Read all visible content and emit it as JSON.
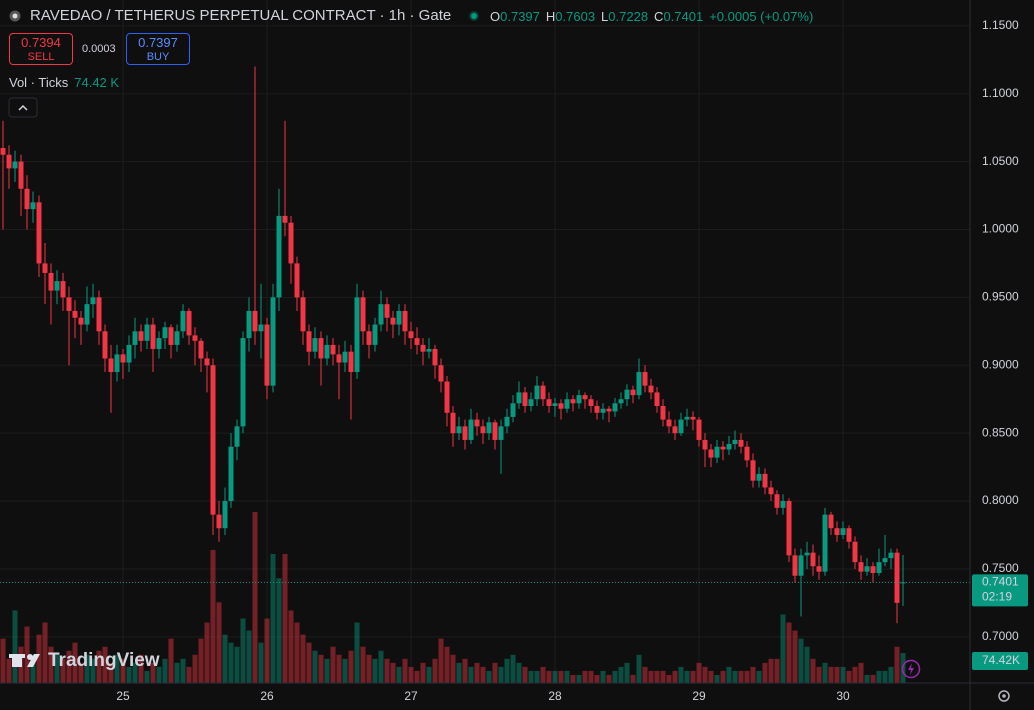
{
  "chart_data": {
    "type": "candlestick",
    "title": "RAVEDAO / TETHERUS PERPETUAL CONTRACT · 1h · Gate",
    "header": {
      "o_label": "O",
      "o": "0.7397",
      "h_label": "H",
      "h": "0.7603",
      "l_label": "L",
      "l": "0.7228",
      "c_label": "C",
      "c": "0.7401",
      "change": "+0.0005 (+0.07%)"
    },
    "trade": {
      "sell_price": "0.7394",
      "sell": "SELL",
      "spread": "0.0003",
      "buy_price": "0.7397",
      "buy": "BUY"
    },
    "volume_legend": {
      "name": "Vol · Ticks",
      "value": "74.42 K"
    },
    "price_scale": {
      "last_price": "0.7401",
      "countdown": "02:19",
      "last_volume": "74.42K"
    },
    "brand": "TradingView",
    "up_color": "#089981",
    "down_color": "#f23645",
    "grid": true,
    "ylim": [
      0.666,
      1.169
    ],
    "yticks": [
      {
        "value": 0.7,
        "label": "0.7000"
      },
      {
        "value": 0.75,
        "label": "0.7500"
      },
      {
        "value": 0.8,
        "label": "0.8000"
      },
      {
        "value": 0.85,
        "label": "0.8500"
      },
      {
        "value": 0.9,
        "label": "0.9000"
      },
      {
        "value": 0.95,
        "label": "0.9500"
      },
      {
        "value": 1.0,
        "label": "1.0000"
      },
      {
        "value": 1.05,
        "label": "1.0500"
      },
      {
        "value": 1.1,
        "label": "1.1000"
      },
      {
        "value": 1.15,
        "label": "1.1500"
      }
    ],
    "volume_ylim": [
      0,
      1694
    ],
    "categories": [
      null,
      null,
      null,
      null,
      null,
      null,
      null,
      null,
      null,
      null,
      null,
      null,
      null,
      null,
      null,
      null,
      null,
      null,
      null,
      null,
      "25",
      null,
      null,
      null,
      null,
      null,
      null,
      null,
      null,
      null,
      null,
      null,
      null,
      null,
      null,
      null,
      null,
      null,
      null,
      null,
      null,
      null,
      null,
      null,
      "26",
      null,
      null,
      null,
      null,
      null,
      null,
      null,
      null,
      null,
      null,
      null,
      null,
      null,
      null,
      null,
      null,
      null,
      null,
      null,
      null,
      null,
      null,
      null,
      "27",
      null,
      null,
      null,
      null,
      null,
      null,
      null,
      null,
      null,
      null,
      null,
      null,
      null,
      null,
      null,
      null,
      null,
      null,
      null,
      null,
      null,
      null,
      null,
      "28",
      null,
      null,
      null,
      null,
      null,
      null,
      null,
      null,
      null,
      null,
      null,
      null,
      null,
      null,
      null,
      null,
      null,
      null,
      null,
      null,
      null,
      null,
      null,
      "29",
      null,
      null,
      null,
      null,
      null,
      null,
      null,
      null,
      null,
      null,
      null,
      null,
      null,
      null,
      null,
      null,
      null,
      null,
      null,
      null,
      null,
      null,
      null,
      "30",
      null,
      null,
      null,
      null,
      null,
      null,
      null,
      null,
      null,
      null
    ],
    "candles": [
      [
        1.06,
        1.08,
        1.0,
        1.055
      ],
      [
        1.055,
        1.062,
        1.03,
        1.045
      ],
      [
        1.045,
        1.058,
        1.035,
        1.05
      ],
      [
        1.05,
        1.055,
        1.01,
        1.03
      ],
      [
        1.03,
        1.04,
        1.0,
        1.015
      ],
      [
        1.015,
        1.028,
        1.005,
        1.02
      ],
      [
        1.02,
        1.025,
        0.965,
        0.975
      ],
      [
        0.975,
        0.99,
        0.945,
        0.968
      ],
      [
        0.968,
        0.975,
        0.93,
        0.955
      ],
      [
        0.955,
        0.97,
        0.945,
        0.962
      ],
      [
        0.962,
        0.968,
        0.94,
        0.95
      ],
      [
        0.95,
        0.958,
        0.9,
        0.94
      ],
      [
        0.94,
        0.948,
        0.92,
        0.935
      ],
      [
        0.935,
        0.94,
        0.915,
        0.93
      ],
      [
        0.93,
        0.958,
        0.925,
        0.945
      ],
      [
        0.945,
        0.96,
        0.935,
        0.95
      ],
      [
        0.95,
        0.955,
        0.915,
        0.925
      ],
      [
        0.925,
        0.93,
        0.895,
        0.905
      ],
      [
        0.905,
        0.915,
        0.865,
        0.895
      ],
      [
        0.895,
        0.915,
        0.888,
        0.908
      ],
      [
        0.908,
        0.912,
        0.89,
        0.902
      ],
      [
        0.902,
        0.922,
        0.895,
        0.915
      ],
      [
        0.915,
        0.935,
        0.905,
        0.925
      ],
      [
        0.925,
        0.93,
        0.91,
        0.918
      ],
      [
        0.918,
        0.935,
        0.912,
        0.93
      ],
      [
        0.93,
        0.935,
        0.895,
        0.912
      ],
      [
        0.912,
        0.925,
        0.905,
        0.92
      ],
      [
        0.92,
        0.932,
        0.912,
        0.928
      ],
      [
        0.928,
        0.93,
        0.905,
        0.915
      ],
      [
        0.915,
        0.93,
        0.91,
        0.925
      ],
      [
        0.925,
        0.945,
        0.92,
        0.94
      ],
      [
        0.94,
        0.942,
        0.915,
        0.922
      ],
      [
        0.922,
        0.928,
        0.9,
        0.918
      ],
      [
        0.918,
        0.92,
        0.895,
        0.905
      ],
      [
        0.905,
        0.91,
        0.88,
        0.9
      ],
      [
        0.9,
        0.905,
        0.775,
        0.79
      ],
      [
        0.79,
        0.8,
        0.77,
        0.78
      ],
      [
        0.78,
        0.81,
        0.775,
        0.8
      ],
      [
        0.8,
        0.85,
        0.795,
        0.84
      ],
      [
        0.84,
        0.86,
        0.83,
        0.855
      ],
      [
        0.855,
        0.925,
        0.85,
        0.92
      ],
      [
        0.92,
        0.95,
        0.91,
        0.94
      ],
      [
        0.94,
        1.12,
        0.915,
        0.925
      ],
      [
        0.925,
        0.96,
        0.905,
        0.93
      ],
      [
        0.93,
        0.935,
        0.875,
        0.885
      ],
      [
        0.885,
        0.96,
        0.88,
        0.95
      ],
      [
        0.95,
        1.03,
        0.94,
        1.01
      ],
      [
        1.01,
        1.08,
        0.995,
        1.005
      ],
      [
        1.005,
        1.01,
        0.96,
        0.975
      ],
      [
        0.975,
        0.98,
        0.94,
        0.95
      ],
      [
        0.95,
        0.955,
        0.915,
        0.925
      ],
      [
        0.925,
        0.93,
        0.9,
        0.91
      ],
      [
        0.91,
        0.928,
        0.905,
        0.92
      ],
      [
        0.92,
        0.925,
        0.885,
        0.905
      ],
      [
        0.905,
        0.922,
        0.9,
        0.915
      ],
      [
        0.915,
        0.92,
        0.9,
        0.908
      ],
      [
        0.908,
        0.915,
        0.875,
        0.902
      ],
      [
        0.902,
        0.918,
        0.895,
        0.91
      ],
      [
        0.91,
        0.915,
        0.86,
        0.895
      ],
      [
        0.895,
        0.96,
        0.89,
        0.95
      ],
      [
        0.95,
        0.955,
        0.915,
        0.925
      ],
      [
        0.925,
        0.93,
        0.905,
        0.915
      ],
      [
        0.915,
        0.935,
        0.91,
        0.93
      ],
      [
        0.93,
        0.955,
        0.925,
        0.945
      ],
      [
        0.945,
        0.95,
        0.925,
        0.935
      ],
      [
        0.935,
        0.94,
        0.92,
        0.93
      ],
      [
        0.93,
        0.945,
        0.922,
        0.94
      ],
      [
        0.94,
        0.945,
        0.915,
        0.925
      ],
      [
        0.925,
        0.932,
        0.912,
        0.92
      ],
      [
        0.92,
        0.928,
        0.908,
        0.915
      ],
      [
        0.915,
        0.92,
        0.9,
        0.91
      ],
      [
        0.91,
        0.92,
        0.905,
        0.912
      ],
      [
        0.912,
        0.915,
        0.89,
        0.9
      ],
      [
        0.9,
        0.905,
        0.88,
        0.888
      ],
      [
        0.888,
        0.892,
        0.855,
        0.865
      ],
      [
        0.865,
        0.87,
        0.84,
        0.85
      ],
      [
        0.85,
        0.862,
        0.845,
        0.855
      ],
      [
        0.855,
        0.86,
        0.838,
        0.845
      ],
      [
        0.845,
        0.868,
        0.842,
        0.86
      ],
      [
        0.86,
        0.865,
        0.848,
        0.855
      ],
      [
        0.855,
        0.86,
        0.842,
        0.85
      ],
      [
        0.85,
        0.862,
        0.845,
        0.858
      ],
      [
        0.858,
        0.86,
        0.838,
        0.845
      ],
      [
        0.845,
        0.86,
        0.82,
        0.855
      ],
      [
        0.855,
        0.868,
        0.85,
        0.862
      ],
      [
        0.862,
        0.878,
        0.858,
        0.872
      ],
      [
        0.872,
        0.888,
        0.868,
        0.88
      ],
      [
        0.88,
        0.884,
        0.865,
        0.87
      ],
      [
        0.87,
        0.88,
        0.866,
        0.875
      ],
      [
        0.875,
        0.892,
        0.87,
        0.885
      ],
      [
        0.885,
        0.888,
        0.87,
        0.875
      ],
      [
        0.875,
        0.88,
        0.865,
        0.87
      ],
      [
        0.87,
        0.876,
        0.862,
        0.872
      ],
      [
        0.872,
        0.875,
        0.86,
        0.868
      ],
      [
        0.868,
        0.88,
        0.865,
        0.875
      ],
      [
        0.875,
        0.878,
        0.866,
        0.872
      ],
      [
        0.872,
        0.882,
        0.868,
        0.878
      ],
      [
        0.878,
        0.88,
        0.868,
        0.875
      ],
      [
        0.875,
        0.878,
        0.865,
        0.87
      ],
      [
        0.87,
        0.874,
        0.86,
        0.865
      ],
      [
        0.865,
        0.872,
        0.86,
        0.868
      ],
      [
        0.868,
        0.87,
        0.858,
        0.866
      ],
      [
        0.866,
        0.876,
        0.862,
        0.872
      ],
      [
        0.872,
        0.88,
        0.868,
        0.875
      ],
      [
        0.875,
        0.886,
        0.87,
        0.882
      ],
      [
        0.882,
        0.885,
        0.872,
        0.878
      ],
      [
        0.878,
        0.905,
        0.875,
        0.895
      ],
      [
        0.895,
        0.9,
        0.88,
        0.885
      ],
      [
        0.885,
        0.89,
        0.875,
        0.88
      ],
      [
        0.88,
        0.884,
        0.865,
        0.87
      ],
      [
        0.87,
        0.875,
        0.855,
        0.86
      ],
      [
        0.86,
        0.866,
        0.85,
        0.855
      ],
      [
        0.855,
        0.86,
        0.845,
        0.85
      ],
      [
        0.85,
        0.865,
        0.848,
        0.86
      ],
      [
        0.86,
        0.868,
        0.855,
        0.862
      ],
      [
        0.862,
        0.866,
        0.852,
        0.86
      ],
      [
        0.86,
        0.862,
        0.84,
        0.845
      ],
      [
        0.845,
        0.85,
        0.825,
        0.838
      ],
      [
        0.838,
        0.842,
        0.825,
        0.832
      ],
      [
        0.832,
        0.845,
        0.828,
        0.84
      ],
      [
        0.84,
        0.844,
        0.83,
        0.838
      ],
      [
        0.838,
        0.848,
        0.834,
        0.842
      ],
      [
        0.842,
        0.852,
        0.838,
        0.845
      ],
      [
        0.845,
        0.85,
        0.835,
        0.84
      ],
      [
        0.84,
        0.844,
        0.825,
        0.83
      ],
      [
        0.83,
        0.835,
        0.81,
        0.815
      ],
      [
        0.815,
        0.825,
        0.81,
        0.82
      ],
      [
        0.82,
        0.824,
        0.805,
        0.81
      ],
      [
        0.81,
        0.815,
        0.8,
        0.805
      ],
      [
        0.805,
        0.808,
        0.79,
        0.795
      ],
      [
        0.795,
        0.805,
        0.79,
        0.8
      ],
      [
        0.8,
        0.802,
        0.755,
        0.76
      ],
      [
        0.76,
        0.765,
        0.74,
        0.745
      ],
      [
        0.745,
        0.765,
        0.715,
        0.76
      ],
      [
        0.76,
        0.77,
        0.75,
        0.762
      ],
      [
        0.762,
        0.768,
        0.745,
        0.752
      ],
      [
        0.752,
        0.76,
        0.742,
        0.748
      ],
      [
        0.748,
        0.795,
        0.745,
        0.79
      ],
      [
        0.79,
        0.792,
        0.775,
        0.78
      ],
      [
        0.78,
        0.785,
        0.77,
        0.775
      ],
      [
        0.775,
        0.785,
        0.772,
        0.78
      ],
      [
        0.78,
        0.782,
        0.765,
        0.77
      ],
      [
        0.77,
        0.774,
        0.75,
        0.755
      ],
      [
        0.755,
        0.76,
        0.742,
        0.748
      ],
      [
        0.748,
        0.758,
        0.745,
        0.752
      ],
      [
        0.752,
        0.755,
        0.74,
        0.747
      ],
      [
        0.747,
        0.765,
        0.745,
        0.755
      ],
      [
        0.755,
        0.775,
        0.752,
        0.758
      ],
      [
        0.758,
        0.765,
        0.75,
        0.762
      ],
      [
        0.762,
        0.765,
        0.71,
        0.725
      ],
      [
        0.7397,
        0.7603,
        0.7228,
        0.7401
      ]
    ],
    "volume": [
      110,
      60,
      180,
      90,
      140,
      70,
      120,
      150,
      90,
      70,
      60,
      80,
      100,
      50,
      70,
      60,
      80,
      90,
      50,
      70,
      60,
      40,
      50,
      70,
      30,
      50,
      40,
      60,
      110,
      50,
      60,
      40,
      70,
      110,
      150,
      330,
      200,
      120,
      100,
      90,
      160,
      130,
      424,
      100,
      160,
      320,
      260,
      320,
      180,
      150,
      120,
      100,
      80,
      70,
      60,
      90,
      70,
      60,
      80,
      150,
      90,
      70,
      60,
      80,
      60,
      50,
      40,
      60,
      40,
      30,
      50,
      40,
      60,
      110,
      90,
      70,
      50,
      60,
      40,
      50,
      40,
      30,
      50,
      40,
      60,
      70,
      50,
      40,
      30,
      30,
      40,
      30,
      30,
      30,
      30,
      20,
      20,
      30,
      30,
      20,
      30,
      20,
      30,
      40,
      50,
      20,
      70,
      40,
      30,
      30,
      30,
      20,
      30,
      40,
      30,
      30,
      50,
      40,
      30,
      20,
      30,
      40,
      30,
      30,
      30,
      40,
      30,
      50,
      60,
      60,
      170,
      150,
      130,
      110,
      90,
      60,
      40,
      50,
      40,
      40,
      40,
      30,
      40,
      50,
      20,
      20,
      30,
      30,
      40,
      90,
      74.42
    ]
  }
}
